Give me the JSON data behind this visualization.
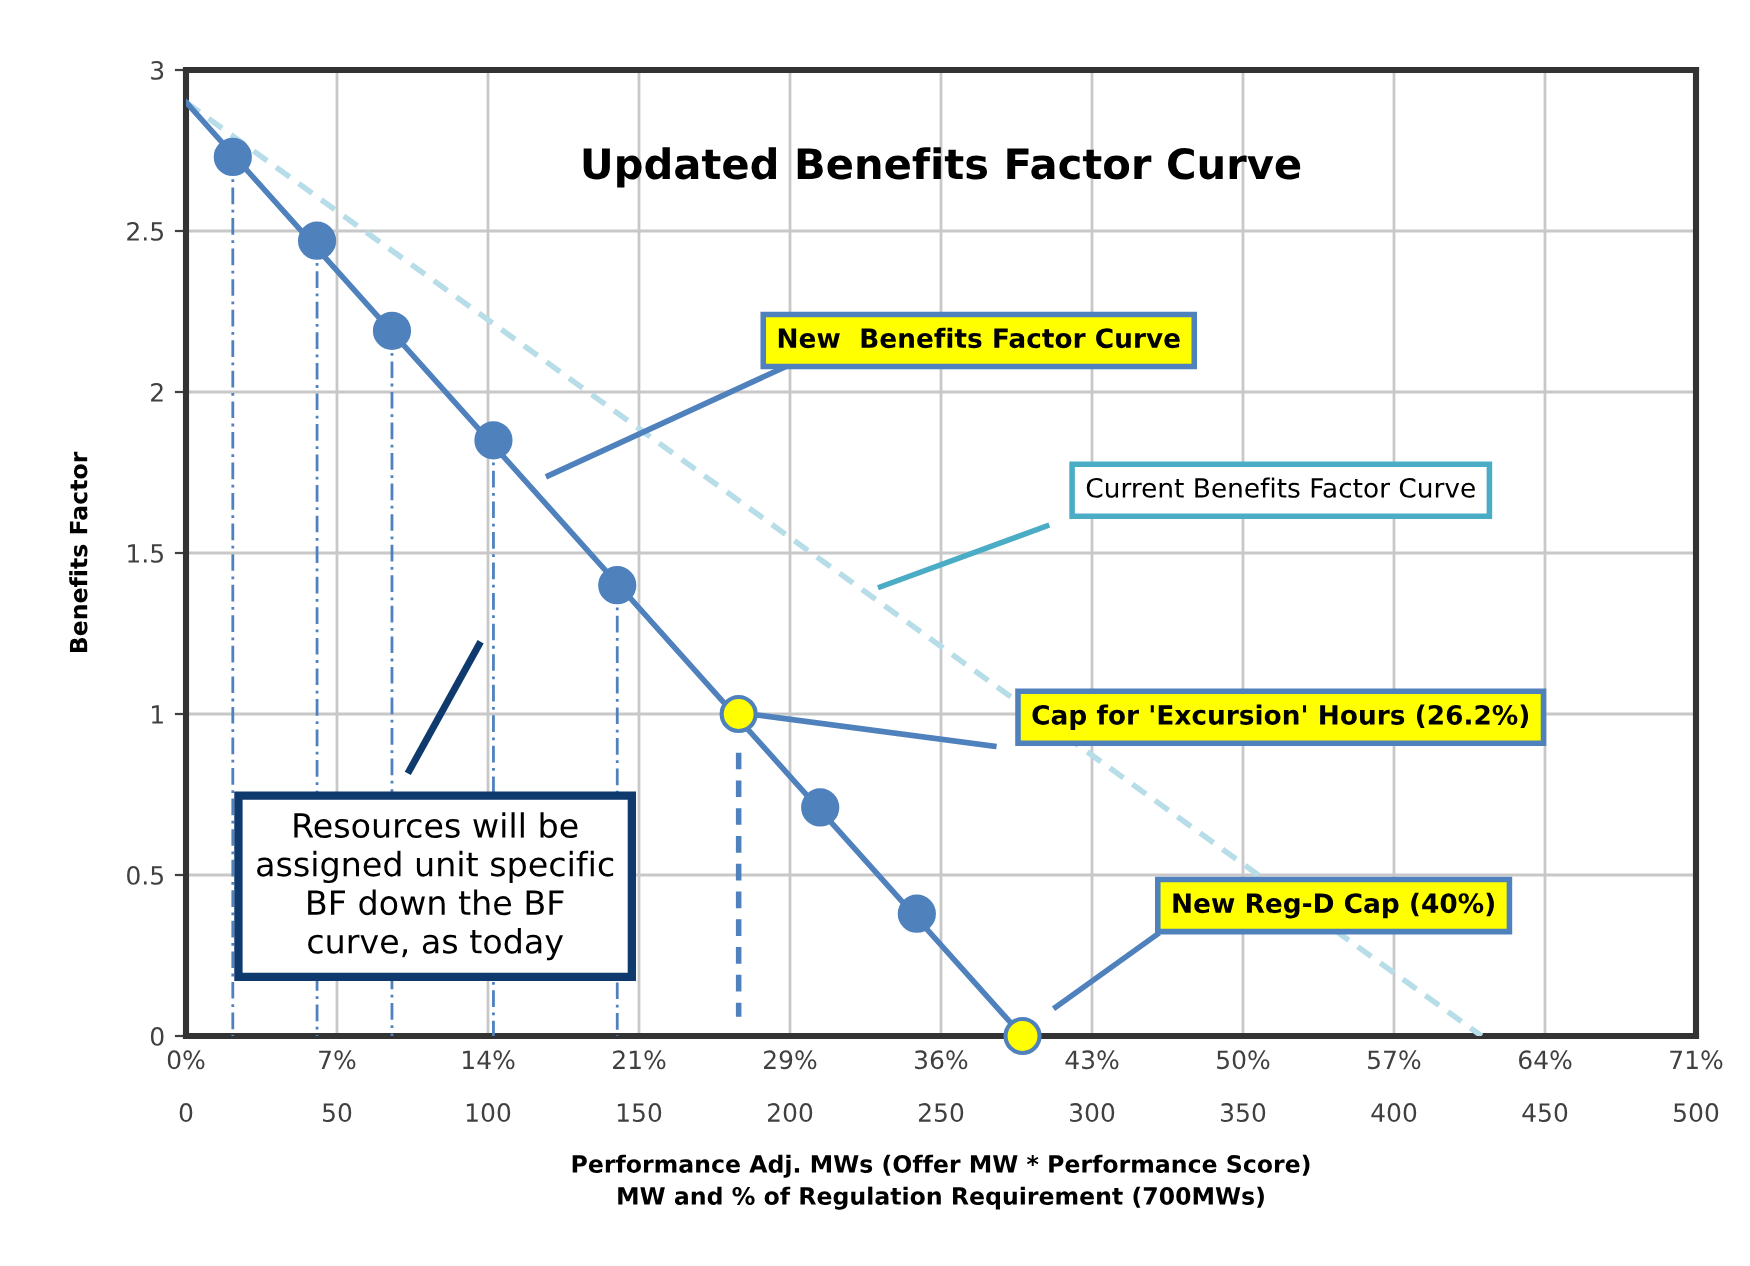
{
  "chart_data": {
    "type": "line",
    "title": "Updated Benefits Factor Curve",
    "xlabel": "Performance Adj. MWs (Offer MW * Performance Score)\nMW and % of Regulation Requirement (700MWs)",
    "ylabel": "Benefits Factor",
    "xlim": [
      0,
      500
    ],
    "xticks": [
      0,
      50,
      100,
      150,
      200,
      250,
      300,
      350,
      400,
      450,
      500
    ],
    "x2lim": [
      0,
      71.43
    ],
    "x2ticks": [
      {
        "value": 0,
        "label": "0%"
      },
      {
        "value": 7.14,
        "label": "7%"
      },
      {
        "value": 14.29,
        "label": "14%"
      },
      {
        "value": 21.43,
        "label": "21%"
      },
      {
        "value": 28.57,
        "label": "29%"
      },
      {
        "value": 35.71,
        "label": "36%"
      },
      {
        "value": 42.86,
        "label": "43%"
      },
      {
        "value": 50,
        "label": "50%"
      },
      {
        "value": 57.14,
        "label": "57%"
      },
      {
        "value": 64.29,
        "label": "64%"
      },
      {
        "value": 71.43,
        "label": "71%"
      }
    ],
    "ylim": [
      0,
      3
    ],
    "yticks": [
      0,
      0.5,
      1,
      1.5,
      2,
      2.5,
      3
    ],
    "grid": true,
    "series": [
      {
        "type": "line",
        "color": "#b7dde8",
        "line_style": "dashed",
        "marker": "none",
        "x": [
          0,
          429
        ],
        "values": [
          2.9,
          0
        ]
      },
      {
        "type": "line",
        "color": "#4f81bd",
        "line_style": "dotted",
        "marker": "none",
        "x": [
          15.5,
          15.5
        ],
        "values": [
          2.73,
          0
        ]
      },
      {
        "type": "line",
        "color": "#4f81bd",
        "line_style": "dotted",
        "marker": "none",
        "x": [
          43.4,
          43.4
        ],
        "values": [
          2.47,
          0
        ]
      },
      {
        "type": "line",
        "color": "#4f81bd",
        "line_style": "dotted",
        "marker": "none",
        "x": [
          68.2,
          68.2
        ],
        "values": [
          2.19,
          0
        ]
      },
      {
        "type": "line",
        "color": "#4f81bd",
        "line_style": "dotted",
        "marker": "none",
        "x": [
          101.8,
          101.8
        ],
        "values": [
          1.85,
          0
        ]
      },
      {
        "type": "line",
        "color": "#4f81bd",
        "line_style": "dotted",
        "marker": "none",
        "x": [
          142.8,
          142.8
        ],
        "values": [
          1.4,
          0
        ]
      },
      {
        "type": "line",
        "color": "#4f81bd",
        "line_style": "dashed",
        "marker": "none",
        "x": [
          183,
          183
        ],
        "values": [
          0.88,
          0.06
        ]
      },
      {
        "color": "#4f81bd",
        "line_style": "solid",
        "marker": "none",
        "x": [
          0,
          277
        ],
        "values": [
          2.9,
          0
        ]
      },
      {
        "type": "scatter",
        "color": "#4f81bd",
        "marker": "circle",
        "x": [
          15.5,
          43.4,
          68.2,
          101.8,
          142.8,
          183,
          210,
          242,
          277
        ],
        "values": [
          2.73,
          2.47,
          2.19,
          1.85,
          1.4,
          1.0,
          0.71,
          0.38,
          0
        ],
        "colors": [
          "#4f81bd",
          "#4f81bd",
          "#4f81bd",
          "#4f81bd",
          "#4f81bd",
          "#ffff00",
          "#4f81bd",
          "#4f81bd",
          "#ffff00"
        ]
      }
    ],
    "annotations": [
      "New  Benefits Factor Curve",
      "Current Benefits Factor Curve",
      "Cap for 'Excursion' Hours (26.2%)",
      "New Reg-D Cap (40%)",
      "Resources will be\nassigned unit specific\nBF down the BF\ncurve, as today"
    ]
  }
}
